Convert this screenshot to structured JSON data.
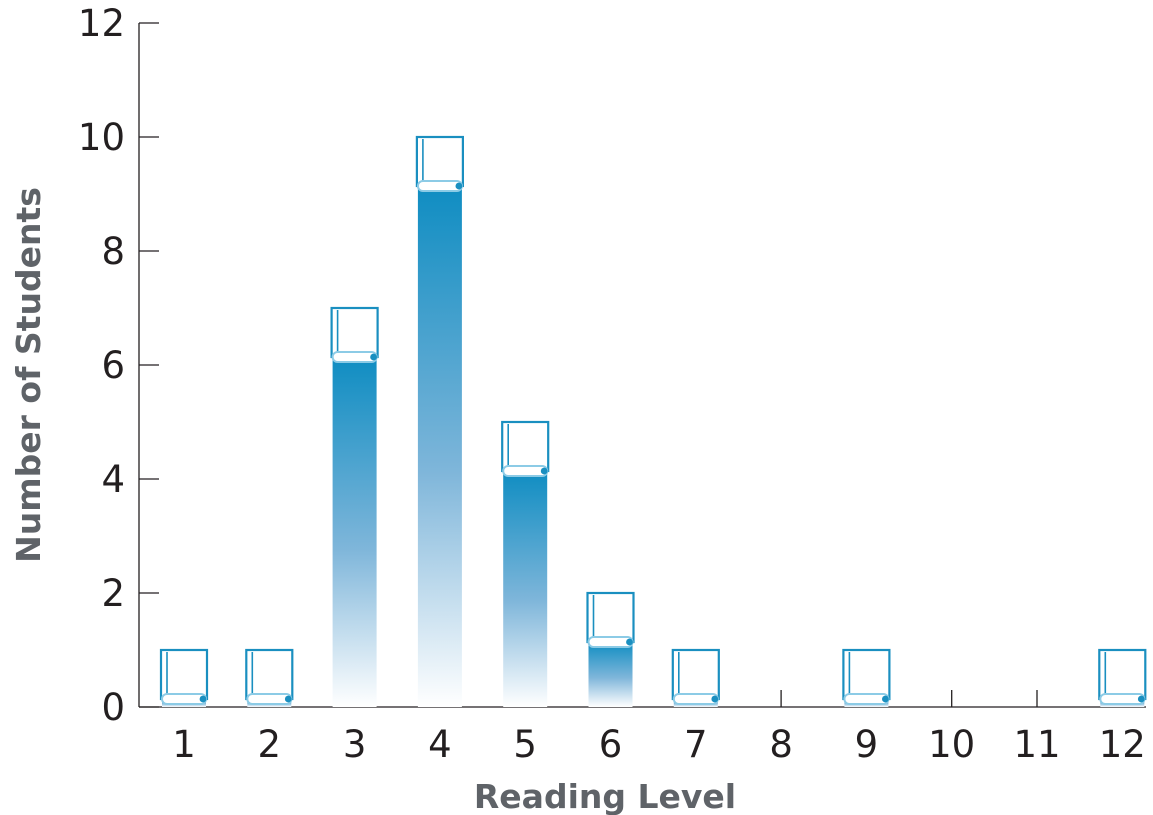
{
  "chart_data": {
    "type": "bar",
    "title": "",
    "xlabel": "Reading Level",
    "ylabel": "Number of Students",
    "categories": [
      "1",
      "2",
      "3",
      "4",
      "5",
      "6",
      "7",
      "8",
      "9",
      "10",
      "11",
      "12"
    ],
    "values": [
      1,
      1,
      7,
      10,
      5,
      2,
      1,
      0,
      1,
      0,
      0,
      1
    ],
    "y_ticks": [
      "0",
      "2",
      "4",
      "6",
      "8",
      "10",
      "12"
    ],
    "ylim": [
      0,
      12
    ],
    "grid": false,
    "legend": "none",
    "bar_style": "book-icon",
    "colors": {
      "bar_top": "#1592c4",
      "bar_bottom": "#ffffff",
      "book_outline": "#1a8fc0",
      "axis": "#231f20",
      "axis_title": "#5f6368"
    }
  }
}
